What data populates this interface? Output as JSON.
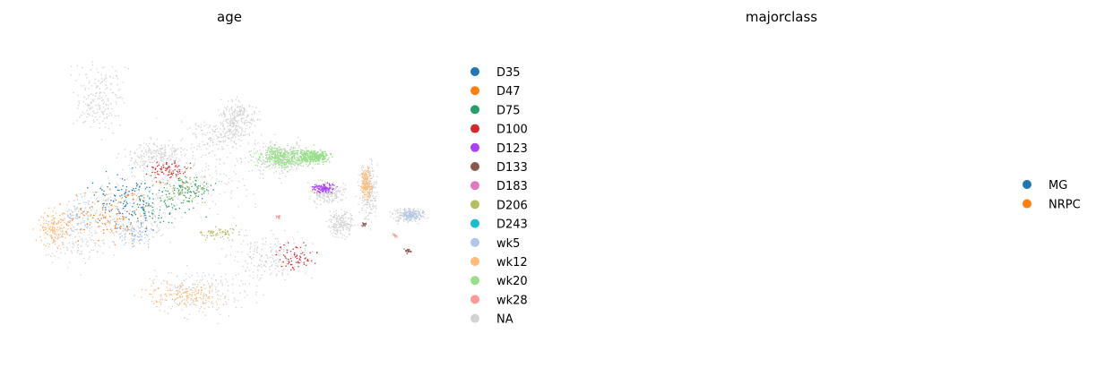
{
  "figure": {
    "panels": [
      {
        "title": "age"
      },
      {
        "title": "majorclass"
      }
    ]
  },
  "chart_data": [
    {
      "type": "scatter",
      "title": "age",
      "xlabel": "",
      "ylabel": "",
      "axes_visible": false,
      "grid": false,
      "legend_position": "right",
      "categories": [
        "D35",
        "D47",
        "D75",
        "D100",
        "D123",
        "D133",
        "D183",
        "D206",
        "D243",
        "wk5",
        "wk12",
        "wk20",
        "wk28",
        "NA"
      ],
      "colors": [
        "#1f77b4",
        "#ff7f0e",
        "#279e68",
        "#d62728",
        "#aa40fc",
        "#8c564b",
        "#e377c2",
        "#b5bd61",
        "#17becf",
        "#aec7e8",
        "#ffbb78",
        "#98df8a",
        "#ff9896",
        "#d3d3d3"
      ]
    },
    {
      "type": "scatter",
      "title": "majorclass",
      "xlabel": "",
      "ylabel": "",
      "axes_visible": false,
      "grid": false,
      "legend_position": "right",
      "categories": [
        "MG",
        "NRPC"
      ],
      "colors": [
        "#1f77b4",
        "#ff7f0e"
      ]
    }
  ]
}
